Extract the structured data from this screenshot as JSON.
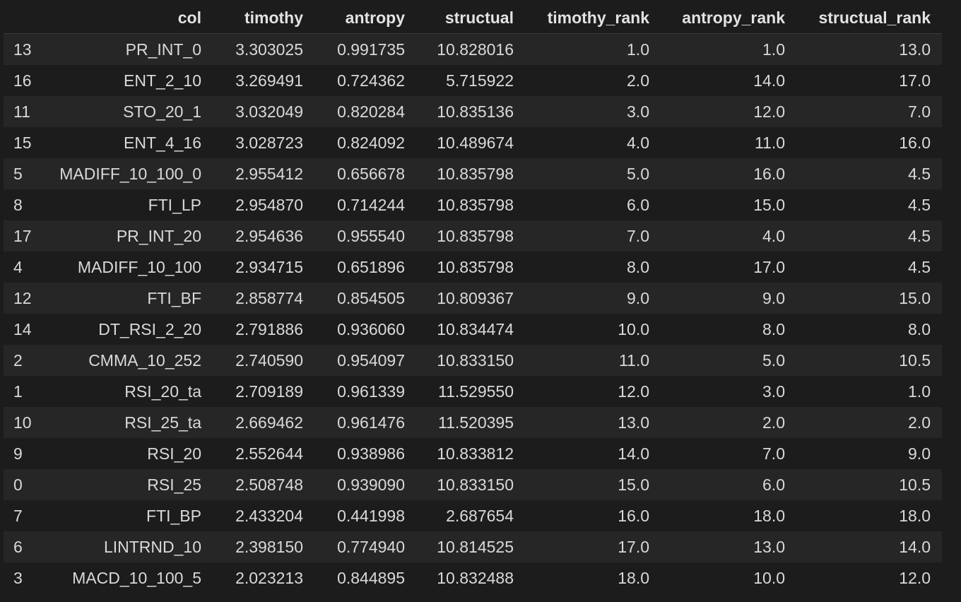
{
  "table": {
    "headers": [
      "",
      "col",
      "timothy",
      "antropy",
      "structual",
      "timothy_rank",
      "antropy_rank",
      "structual_rank"
    ],
    "rows": [
      [
        "13",
        "PR_INT_0",
        "3.303025",
        "0.991735",
        "10.828016",
        "1.0",
        "1.0",
        "13.0"
      ],
      [
        "16",
        "ENT_2_10",
        "3.269491",
        "0.724362",
        "5.715922",
        "2.0",
        "14.0",
        "17.0"
      ],
      [
        "11",
        "STO_20_1",
        "3.032049",
        "0.820284",
        "10.835136",
        "3.0",
        "12.0",
        "7.0"
      ],
      [
        "15",
        "ENT_4_16",
        "3.028723",
        "0.824092",
        "10.489674",
        "4.0",
        "11.0",
        "16.0"
      ],
      [
        "5",
        "MADIFF_10_100_0",
        "2.955412",
        "0.656678",
        "10.835798",
        "5.0",
        "16.0",
        "4.5"
      ],
      [
        "8",
        "FTI_LP",
        "2.954870",
        "0.714244",
        "10.835798",
        "6.0",
        "15.0",
        "4.5"
      ],
      [
        "17",
        "PR_INT_20",
        "2.954636",
        "0.955540",
        "10.835798",
        "7.0",
        "4.0",
        "4.5"
      ],
      [
        "4",
        "MADIFF_10_100",
        "2.934715",
        "0.651896",
        "10.835798",
        "8.0",
        "17.0",
        "4.5"
      ],
      [
        "12",
        "FTI_BF",
        "2.858774",
        "0.854505",
        "10.809367",
        "9.0",
        "9.0",
        "15.0"
      ],
      [
        "14",
        "DT_RSI_2_20",
        "2.791886",
        "0.936060",
        "10.834474",
        "10.0",
        "8.0",
        "8.0"
      ],
      [
        "2",
        "CMMA_10_252",
        "2.740590",
        "0.954097",
        "10.833150",
        "11.0",
        "5.0",
        "10.5"
      ],
      [
        "1",
        "RSI_20_ta",
        "2.709189",
        "0.961339",
        "11.529550",
        "12.0",
        "3.0",
        "1.0"
      ],
      [
        "10",
        "RSI_25_ta",
        "2.669462",
        "0.961476",
        "11.520395",
        "13.0",
        "2.0",
        "2.0"
      ],
      [
        "9",
        "RSI_20",
        "2.552644",
        "0.938986",
        "10.833812",
        "14.0",
        "7.0",
        "9.0"
      ],
      [
        "0",
        "RSI_25",
        "2.508748",
        "0.939090",
        "10.833150",
        "15.0",
        "6.0",
        "10.5"
      ],
      [
        "7",
        "FTI_BP",
        "2.433204",
        "0.441998",
        "2.687654",
        "16.0",
        "18.0",
        "18.0"
      ],
      [
        "6",
        "LINTRND_10",
        "2.398150",
        "0.774940",
        "10.814525",
        "17.0",
        "13.0",
        "14.0"
      ],
      [
        "3",
        "MACD_10_100_5",
        "2.023213",
        "0.844895",
        "10.832488",
        "18.0",
        "10.0",
        "12.0"
      ]
    ]
  }
}
